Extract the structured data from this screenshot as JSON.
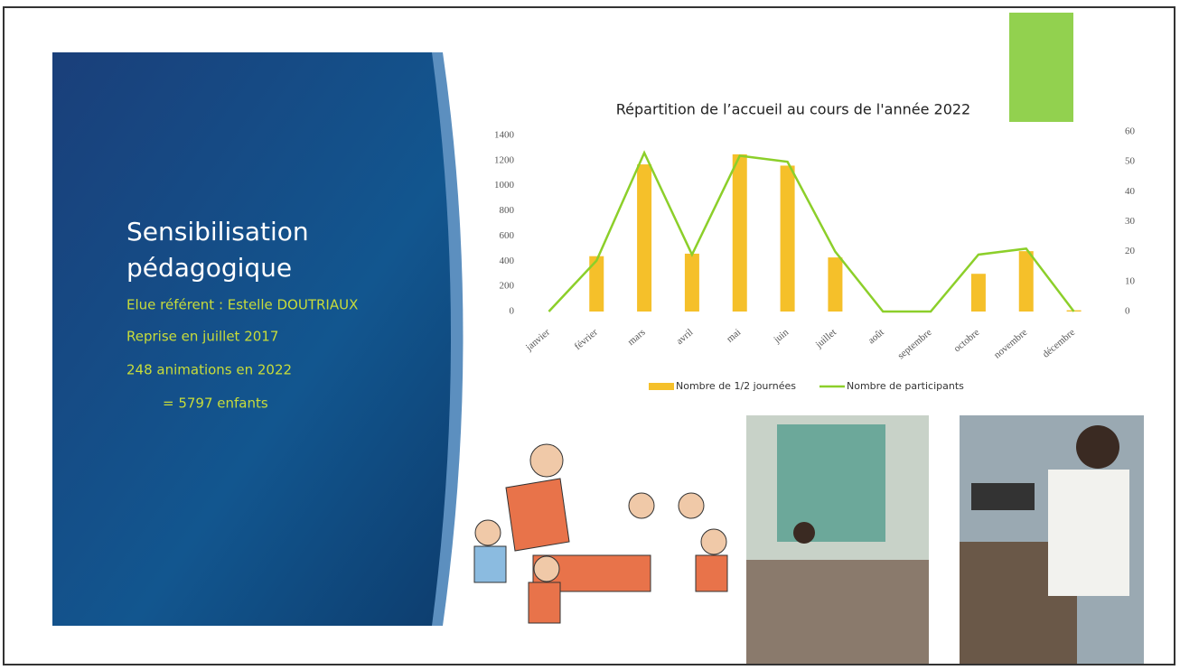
{
  "slide": {
    "title_lines": [
      "Sensibilisation",
      "pédagogique"
    ],
    "details": [
      "Elue référent : Estelle DOUTRIAUX",
      "Reprise en juillet 2017",
      "248 animations en 2022",
      "= 5797 enfants"
    ]
  },
  "chart_data": {
    "type": "bar",
    "title": "Répartition de l’accueil au cours de l'année 2022",
    "categories": [
      "janvier",
      "février",
      "mars",
      "avril",
      "mai",
      "juin",
      "juillet",
      "août",
      "septembre",
      "octobre",
      "novembre",
      "décembre"
    ],
    "series": [
      {
        "name": "Nombre de 1/2 journées",
        "type": "bar",
        "color": "#f5c02a",
        "values": [
          0,
          440,
          1170,
          460,
          1250,
          1160,
          430,
          0,
          0,
          300,
          480,
          10
        ]
      },
      {
        "name": "Nombre de participants",
        "type": "line",
        "axis": "y2",
        "color": "#8ccf2a",
        "values": [
          0,
          17,
          53,
          19,
          52,
          50,
          20,
          0,
          0,
          19,
          21,
          0
        ]
      }
    ],
    "ylim": [
      0,
      1400
    ],
    "yticks": [
      0,
      200,
      400,
      600,
      800,
      1000,
      1200,
      1400
    ],
    "y2lim": [
      0,
      60
    ],
    "y2ticks": [
      0,
      10,
      20,
      30,
      40,
      50,
      60
    ],
    "grid": false,
    "legend": "bottom"
  }
}
